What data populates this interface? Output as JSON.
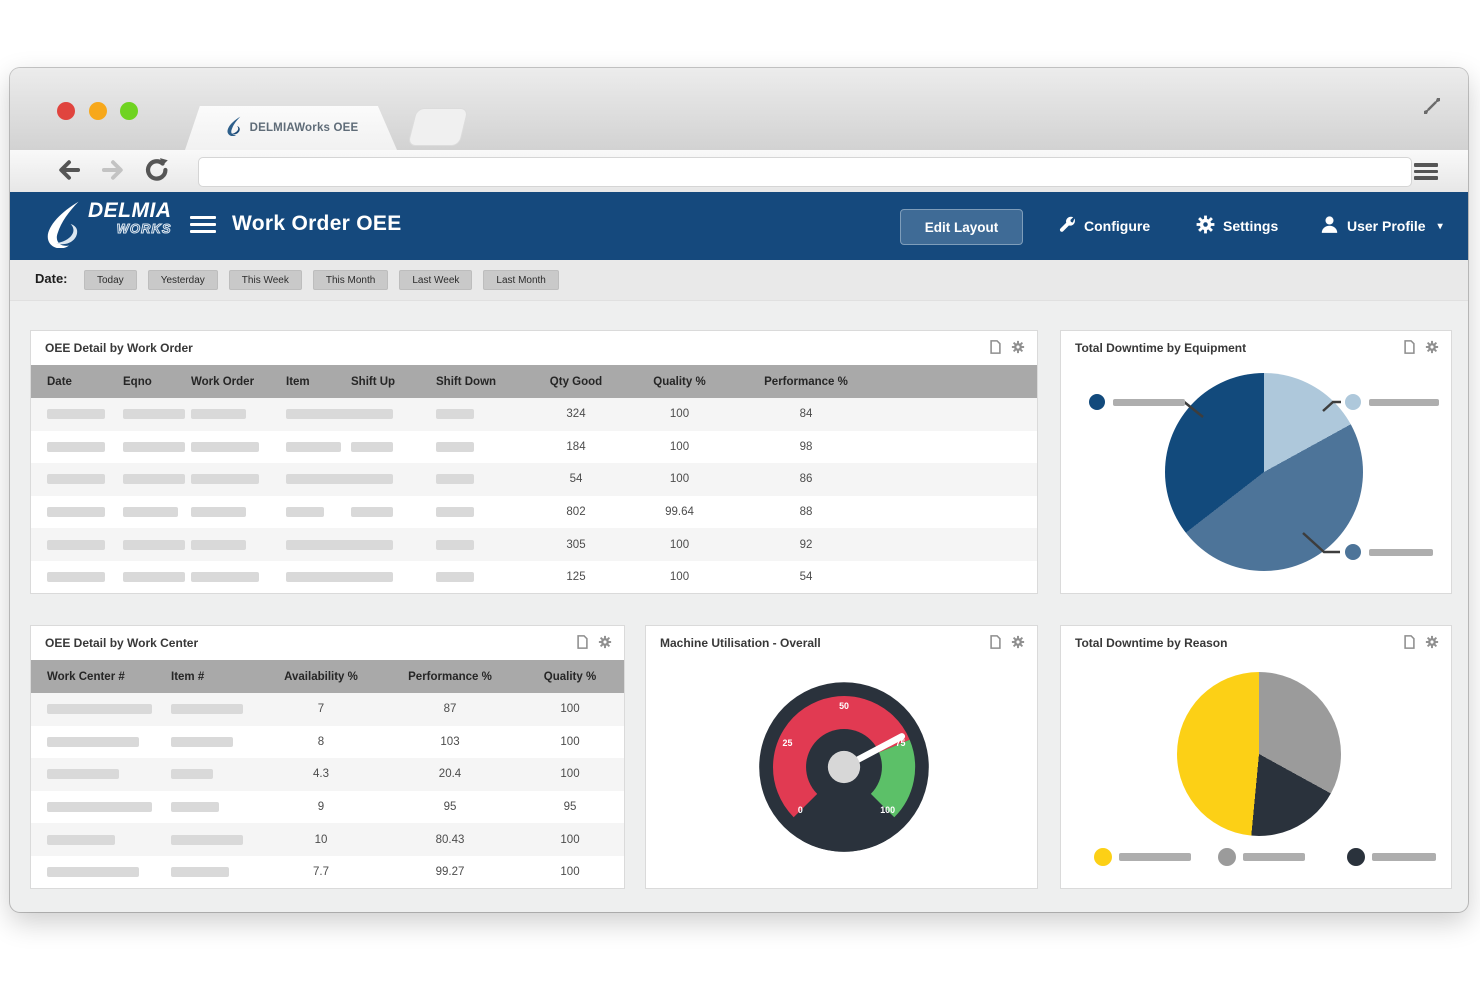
{
  "browser": {
    "tab_title": "DELMIAWorks OEE",
    "traffic_lights": {
      "close": "#e0443e",
      "minimize": "#f7a81b",
      "zoom": "#6fd321"
    }
  },
  "header": {
    "brand_primary": "DELMIA",
    "brand_secondary": "WORKS",
    "title": "Work Order OEE",
    "edit_layout": "Edit Layout",
    "configure": "Configure",
    "settings": "Settings",
    "user_profile": "User Profile",
    "caret": "▾",
    "bg_color": "#15497d"
  },
  "date_filter": {
    "label": "Date:",
    "options": [
      "Today",
      "Yesterday",
      "This Week",
      "This Month",
      "Last Week",
      "Last Month"
    ]
  },
  "work_order_table": {
    "title": "OEE Detail by Work Order",
    "columns": [
      "Date",
      "Eqno",
      "Work Order",
      "Item",
      "Shift Up",
      "Shift Down",
      "Qty Good",
      "Quality %",
      "Performance %"
    ],
    "rows": [
      {
        "bars": [
          58,
          62,
          55,
          68,
          42,
          38
        ],
        "values": [
          "324",
          "100",
          "84"
        ]
      },
      {
        "bars": [
          58,
          62,
          68,
          55,
          42,
          38
        ],
        "values": [
          "184",
          "100",
          "98"
        ]
      },
      {
        "bars": [
          58,
          62,
          68,
          68,
          42,
          38
        ],
        "values": [
          "54",
          "100",
          "86"
        ]
      },
      {
        "bars": [
          58,
          55,
          55,
          38,
          42,
          38
        ],
        "values": [
          "802",
          "99.64",
          "88"
        ]
      },
      {
        "bars": [
          58,
          62,
          55,
          68,
          42,
          38
        ],
        "values": [
          "305",
          "100",
          "92"
        ]
      },
      {
        "bars": [
          58,
          62,
          68,
          68,
          42,
          38
        ],
        "values": [
          "125",
          "100",
          "54"
        ]
      }
    ]
  },
  "work_center_table": {
    "title": "OEE Detail by Work Center",
    "columns": [
      "Work Center #",
      "Item #",
      "Availability %",
      "Performance %",
      "Quality %"
    ],
    "rows": [
      {
        "bars": [
          105,
          72
        ],
        "values": [
          "7",
          "87",
          "100"
        ]
      },
      {
        "bars": [
          92,
          62
        ],
        "values": [
          "8",
          "103",
          "100"
        ]
      },
      {
        "bars": [
          72,
          42
        ],
        "values": [
          "4.3",
          "20.4",
          "100"
        ]
      },
      {
        "bars": [
          105,
          48
        ],
        "values": [
          "9",
          "95",
          "95"
        ]
      },
      {
        "bars": [
          68,
          72
        ],
        "values": [
          "10",
          "80.43",
          "100"
        ]
      },
      {
        "bars": [
          92,
          58
        ],
        "values": [
          "7.7",
          "99.27",
          "100"
        ]
      }
    ]
  },
  "chart_data": [
    {
      "type": "pie",
      "title": "Total Downtime by Equipment",
      "note": "slice labels are redacted placeholder bars in the screenshot",
      "slices": [
        {
          "label": "",
          "color": "#aec8db",
          "value": 17
        },
        {
          "label": "",
          "color": "#4d7499",
          "value": 47.5
        },
        {
          "label": "",
          "color": "#124a7c",
          "value": 35.5
        }
      ],
      "legend_position": "callouts"
    },
    {
      "type": "gauge",
      "title": "Machine Utilisation - Overall",
      "min": 0,
      "max": 100,
      "value": 73,
      "ticks": [
        "0",
        "25",
        "50",
        "75",
        "100"
      ],
      "bands": [
        {
          "from": 0,
          "to": 75,
          "color": "#e13a52"
        },
        {
          "from": 75,
          "to": 100,
          "color": "#5cc068"
        }
      ],
      "face_color": "#2a323c",
      "needle_color": "#ffffff"
    },
    {
      "type": "pie",
      "title": "Total Downtime by Reason",
      "note": "slice labels are redacted placeholder bars in the screenshot",
      "slices": [
        {
          "label": "",
          "color": "#9b9b9b",
          "value": 33
        },
        {
          "label": "",
          "color": "#2a323c",
          "value": 18.5
        },
        {
          "label": "",
          "color": "#fcd016",
          "value": 48.5
        }
      ],
      "legend_position": "bottom"
    }
  ]
}
